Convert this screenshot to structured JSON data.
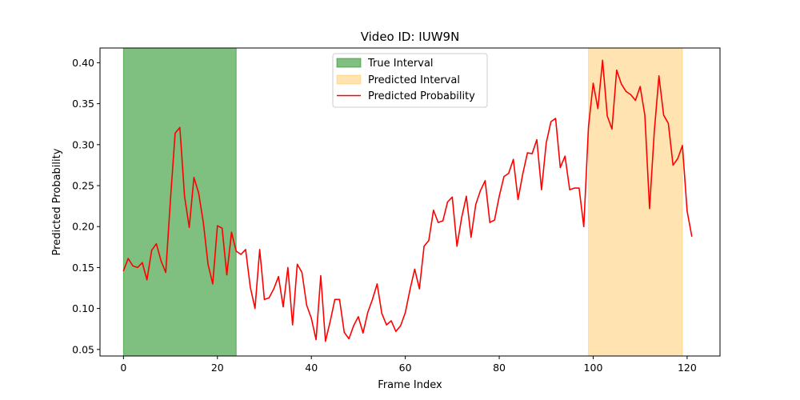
{
  "chart_data": {
    "type": "line",
    "title": "Video ID: IUW9N",
    "xlabel": "Frame Index",
    "ylabel": "Predicted Probability",
    "xlim": [
      -5,
      127
    ],
    "ylim": [
      0.042,
      0.418
    ],
    "xticks": [
      0,
      20,
      40,
      60,
      80,
      100,
      120
    ],
    "xtick_labels": [
      "0",
      "20",
      "40",
      "60",
      "80",
      "100",
      "120"
    ],
    "yticks": [
      0.05,
      0.1,
      0.15,
      0.2,
      0.25,
      0.3,
      0.35,
      0.4
    ],
    "ytick_labels": [
      "0.05",
      "0.10",
      "0.15",
      "0.20",
      "0.25",
      "0.30",
      "0.35",
      "0.40"
    ],
    "grid": false,
    "legend_position": "top-center",
    "intervals": [
      {
        "name": "True Interval",
        "start": 0,
        "end": 24,
        "color": "#008000",
        "opacity": 0.5
      },
      {
        "name": "Predicted Interval",
        "start": 99,
        "end": 119,
        "color": "#ffa500",
        "opacity": 0.3
      }
    ],
    "series": [
      {
        "name": "Predicted Probability",
        "color": "#ff0000",
        "x": [
          0,
          1,
          2,
          3,
          4,
          5,
          6,
          7,
          8,
          9,
          10,
          11,
          12,
          13,
          14,
          15,
          16,
          17,
          18,
          19,
          20,
          21,
          22,
          23,
          24,
          25,
          26,
          27,
          28,
          29,
          30,
          31,
          32,
          33,
          34,
          35,
          36,
          37,
          38,
          39,
          40,
          41,
          42,
          43,
          44,
          45,
          46,
          47,
          48,
          49,
          50,
          51,
          52,
          53,
          54,
          55,
          56,
          57,
          58,
          59,
          60,
          61,
          62,
          63,
          64,
          65,
          66,
          67,
          68,
          69,
          70,
          71,
          72,
          73,
          74,
          75,
          76,
          77,
          78,
          79,
          80,
          81,
          82,
          83,
          84,
          85,
          86,
          87,
          88,
          89,
          90,
          91,
          92,
          93,
          94,
          95,
          96,
          97,
          98,
          99,
          100,
          101,
          102,
          103,
          104,
          105,
          106,
          107,
          108,
          109,
          110,
          111,
          112,
          113,
          114,
          115,
          116,
          117,
          118,
          119,
          120,
          121
        ],
        "values": [
          0.146,
          0.161,
          0.152,
          0.15,
          0.156,
          0.135,
          0.171,
          0.179,
          0.158,
          0.144,
          0.233,
          0.314,
          0.321,
          0.237,
          0.199,
          0.26,
          0.241,
          0.205,
          0.154,
          0.13,
          0.201,
          0.198,
          0.141,
          0.193,
          0.17,
          0.166,
          0.172,
          0.126,
          0.1,
          0.172,
          0.111,
          0.113,
          0.124,
          0.139,
          0.102,
          0.15,
          0.08,
          0.154,
          0.144,
          0.104,
          0.088,
          0.062,
          0.14,
          0.06,
          0.084,
          0.111,
          0.111,
          0.071,
          0.063,
          0.079,
          0.09,
          0.07,
          0.095,
          0.111,
          0.13,
          0.094,
          0.08,
          0.085,
          0.072,
          0.079,
          0.095,
          0.123,
          0.148,
          0.124,
          0.176,
          0.183,
          0.22,
          0.205,
          0.207,
          0.23,
          0.236,
          0.176,
          0.211,
          0.237,
          0.187,
          0.227,
          0.244,
          0.256,
          0.205,
          0.208,
          0.237,
          0.261,
          0.265,
          0.282,
          0.233,
          0.264,
          0.29,
          0.289,
          0.306,
          0.245,
          0.302,
          0.328,
          0.332,
          0.272,
          0.286,
          0.245,
          0.247,
          0.247,
          0.2,
          0.322,
          0.375,
          0.344,
          0.403,
          0.335,
          0.319,
          0.391,
          0.374,
          0.365,
          0.361,
          0.354,
          0.371,
          0.336,
          0.222,
          0.315,
          0.384,
          0.336,
          0.326,
          0.275,
          0.283,
          0.299,
          0.219,
          0.188
        ]
      }
    ]
  }
}
